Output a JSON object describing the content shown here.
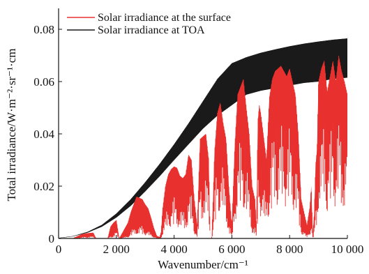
{
  "chart_data": {
    "type": "area",
    "title": "",
    "xlabel": "Wavenumber/cm⁻¹",
    "ylabel": "Total irradiance/W·m⁻²·sr⁻¹·cm",
    "xlim": [
      0,
      10000
    ],
    "ylim": [
      0,
      0.088
    ],
    "x_ticks": [
      0,
      2000,
      4000,
      6000,
      8000,
      10000
    ],
    "x_tick_labels": [
      "0",
      "2 000",
      "4 000",
      "6 000",
      "8 000",
      "10 000"
    ],
    "y_ticks": [
      0,
      0.02,
      0.04,
      0.06,
      0.08
    ],
    "y_tick_labels": [
      "0",
      "0.02",
      "0.04",
      "0.06",
      "0.08"
    ],
    "grid": false,
    "legend_position": "top-left",
    "series": [
      {
        "name": "Solar irradiance at TOA",
        "color": "#1a1a1a",
        "x": [
          0,
          500,
          1000,
          1500,
          2000,
          2500,
          3000,
          3500,
          4000,
          4500,
          5000,
          5500,
          6000,
          6500,
          7000,
          7500,
          8000,
          8500,
          9000,
          9500,
          10000
        ],
        "ymax": [
          0.0002,
          0.0009,
          0.0025,
          0.0052,
          0.0095,
          0.015,
          0.0215,
          0.0285,
          0.036,
          0.044,
          0.0525,
          0.061,
          0.067,
          0.0693,
          0.071,
          0.0723,
          0.0735,
          0.0745,
          0.0753,
          0.076,
          0.0765
        ],
        "ymin": [
          0.0001,
          0.0008,
          0.0022,
          0.0045,
          0.008,
          0.0125,
          0.018,
          0.0238,
          0.03,
          0.036,
          0.042,
          0.047,
          0.051,
          0.055,
          0.0565,
          0.0575,
          0.0585,
          0.0595,
          0.06,
          0.061,
          0.0615
        ]
      },
      {
        "name": "Solar irradiance at the surface",
        "color": "#e8302f",
        "x": [
          0,
          500,
          800,
          1000,
          1200,
          1300,
          1500,
          1700,
          1800,
          1900,
          2000,
          2100,
          2400,
          2500,
          2600,
          2700,
          2900,
          3000,
          3100,
          3200,
          3300,
          3400,
          3500,
          3550,
          3600,
          3700,
          3800,
          3900,
          4000,
          4100,
          4200,
          4300,
          4400,
          4500,
          4600,
          4700,
          4800,
          4900,
          5000,
          5100,
          5200,
          5250,
          5300,
          5350,
          5400,
          5500,
          5600,
          5700,
          5800,
          5900,
          6000,
          6100,
          6200,
          6300,
          6400,
          6500,
          6600,
          6700,
          6800,
          6850,
          6900,
          6950,
          7000,
          7100,
          7200,
          7300,
          7400,
          7500,
          7600,
          7700,
          7800,
          7900,
          8000,
          8100,
          8200,
          8300,
          8400,
          8500,
          8600,
          8700,
          8750,
          8800,
          8850,
          8900,
          8950,
          9000,
          9100,
          9200,
          9300,
          9400,
          9500,
          9600,
          9700,
          9800,
          9900,
          10000
        ],
        "ymax": [
          0,
          0.0001,
          0.0016,
          0.002,
          0.0022,
          0,
          0,
          0,
          0.0045,
          0.006,
          0.007,
          0,
          0.006,
          0.01,
          0.013,
          0.016,
          0.015,
          0.013,
          0.0115,
          0.008,
          0.004,
          0.001,
          0.0005,
          0.0025,
          0.011,
          0.02,
          0.0245,
          0.0265,
          0.0275,
          0.027,
          0.024,
          0.023,
          0.0245,
          0.032,
          0.03,
          0.015,
          0.005,
          0.038,
          0.039,
          0.04,
          0.03,
          0,
          0,
          0.015,
          0.033,
          0.048,
          0.052,
          0.044,
          0.038,
          0.019,
          0.005,
          0.035,
          0.055,
          0.058,
          0.061,
          0.05,
          0.04,
          0.02,
          0.015,
          0.005,
          0.045,
          0.051,
          0.048,
          0.039,
          0.03,
          0.054,
          0.061,
          0.064,
          0.065,
          0.066,
          0.064,
          0.062,
          0.065,
          0.06,
          0.055,
          0.04,
          0.015,
          0.01,
          0.005,
          0.012,
          0.02,
          0.002,
          0.009,
          0.028,
          0.034,
          0.06,
          0.065,
          0.068,
          0.056,
          0.062,
          0.068,
          0.06,
          0.07,
          0.064,
          0.06,
          0.055
        ],
        "ymin": [
          0,
          0,
          0.0005,
          0.0008,
          0.0009,
          0,
          0,
          0,
          0.001,
          0.0015,
          0.003,
          0,
          0.001,
          0.003,
          0.004,
          0.005,
          0.005,
          0.004,
          0.003,
          0.002,
          0.001,
          0.0002,
          0.0001,
          0.0005,
          0.004,
          0.009,
          0.013,
          0.015,
          0.016,
          0.015,
          0.012,
          0.011,
          0.012,
          0.018,
          0.017,
          0.006,
          0.001,
          0.023,
          0.025,
          0.026,
          0.018,
          0,
          0,
          0.005,
          0.018,
          0.03,
          0.034,
          0.027,
          0.02,
          0.007,
          0.001,
          0.018,
          0.035,
          0.038,
          0.04,
          0.03,
          0.02,
          0.007,
          0.005,
          0.001,
          0.025,
          0.031,
          0.028,
          0.02,
          0.015,
          0.033,
          0.04,
          0.042,
          0.043,
          0.044,
          0.042,
          0.04,
          0.043,
          0.038,
          0.033,
          0.022,
          0.006,
          0.003,
          0.001,
          0.004,
          0.008,
          0.0005,
          0.003,
          0.012,
          0.016,
          0.038,
          0.042,
          0.045,
          0.034,
          0.04,
          0.045,
          0.038,
          0.047,
          0.042,
          0.038,
          0.034
        ]
      }
    ]
  }
}
